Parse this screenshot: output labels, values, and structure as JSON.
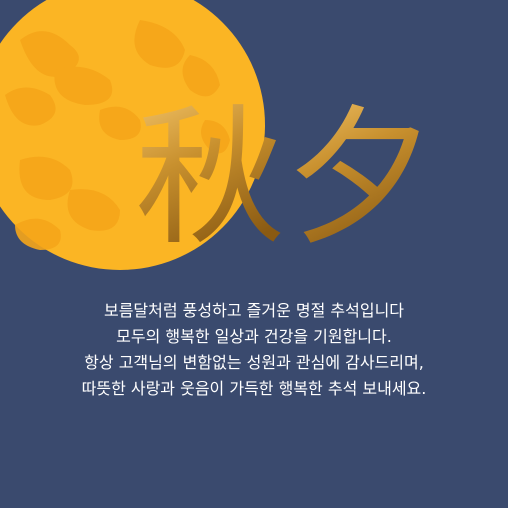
{
  "colors": {
    "background": "#3a4a6e",
    "moon": "#fbb524",
    "moon_pattern": "#f6a61a",
    "title_gold_light": "#f4c56a",
    "title_gold_dark": "#8a5a12",
    "text": "#ffffff"
  },
  "title": {
    "char1": "秋",
    "char2": "夕"
  },
  "message": {
    "lines": [
      "보름달처럼 풍성하고 즐거운 명절 추석입니다",
      "모두의 행복한 일상과 건강을 기원합니다.",
      "항상 고객님의 변함없는 성원과 관심에 감사드리며,",
      "따뜻한 사랑과 웃음이 가득한 행복한 추석 보내세요."
    ]
  }
}
